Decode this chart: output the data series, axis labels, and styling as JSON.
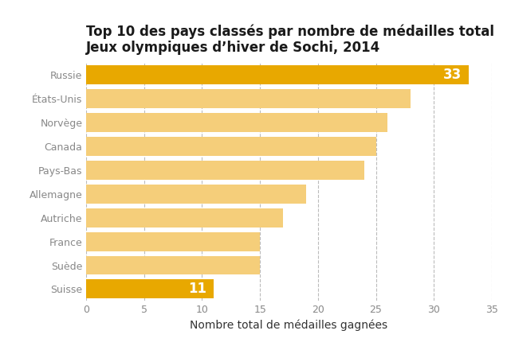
{
  "title": "Top 10 des pays classés par nombre de médailles total\nJeux olympiques d’hiver de Sochi, 2014",
  "xlabel": "Nombre total de médailles gagnées",
  "countries": [
    "Suisse",
    "Suède",
    "France",
    "Autriche",
    "Allemagne",
    "Pays-Bas",
    "Canada",
    "Norvège",
    "États-Unis",
    "Russie"
  ],
  "values": [
    11,
    15,
    15,
    17,
    19,
    24,
    25,
    26,
    28,
    33
  ],
  "bar_colors": [
    "#E8A800",
    "#F5CE7A",
    "#F5CE7A",
    "#F5CE7A",
    "#F5CE7A",
    "#F5CE7A",
    "#F5CE7A",
    "#F5CE7A",
    "#F5CE7A",
    "#E8A800"
  ],
  "highlight_indices": [
    0,
    9
  ],
  "label_values": {
    "0": "11",
    "9": "33"
  },
  "label_color": "#ffffff",
  "xlim": [
    0,
    35
  ],
  "xticks": [
    0,
    5,
    10,
    15,
    20,
    25,
    30,
    35
  ],
  "bar_height": 0.8,
  "title_fontsize": 12,
  "axis_label_fontsize": 10,
  "tick_fontsize": 9,
  "label_fontsize": 12,
  "background_color": "#ffffff",
  "grid_color": "#bbbbbb",
  "title_color": "#1a1a1a",
  "tick_color": "#888888",
  "xlabel_color": "#333333"
}
